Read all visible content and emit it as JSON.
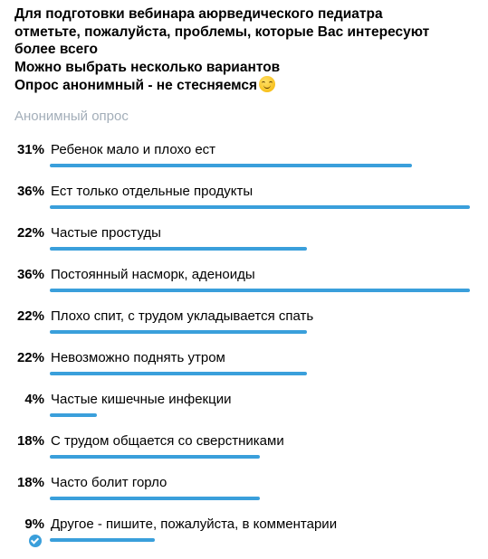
{
  "question": {
    "lines": [
      "Для подготовки вебинара аюрведического педиатра",
      "отметьте, пожалуйста, проблемы, которые Вас интересуют",
      "более всего",
      "Можно выбрать несколько вариантов",
      "Опрос анонимный - не стесняемся"
    ],
    "emoji": "smiling-face-emoji"
  },
  "poll_type": "Анонимный опрос",
  "accent_color": "#3a9fdb",
  "options": [
    {
      "percent": "31%",
      "label": "Ребенок мало и плохо ест",
      "value": 31
    },
    {
      "percent": "36%",
      "label": "Ест только отдельные продукты",
      "value": 36
    },
    {
      "percent": "22%",
      "label": "Частые простуды",
      "value": 22
    },
    {
      "percent": "36%",
      "label": "Постоянный насморк, аденоиды",
      "value": 36
    },
    {
      "percent": "22%",
      "label": "Плохо спит, с трудом укладывается спать",
      "value": 22
    },
    {
      "percent": "22%",
      "label": "Невозможно поднять утром",
      "value": 22
    },
    {
      "percent": "4%",
      "label": "Частые кишечные инфекции",
      "value": 4
    },
    {
      "percent": "18%",
      "label": "С трудом общается со сверстниками",
      "value": 18
    },
    {
      "percent": "18%",
      "label": "Часто болит горло",
      "value": 18
    },
    {
      "percent": "9%",
      "label": "Другое - пишите, пожалуйста, в комментарии",
      "value": 9,
      "voted": true
    }
  ]
}
